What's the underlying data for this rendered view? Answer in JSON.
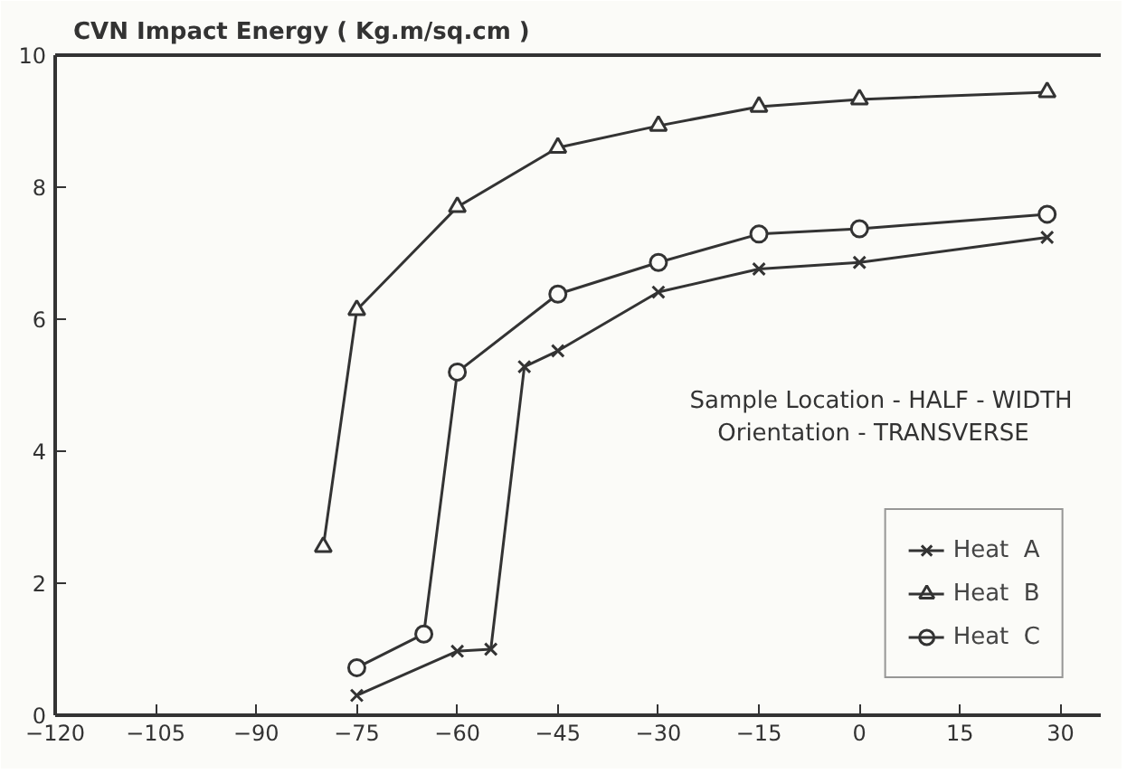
{
  "chart_data": {
    "type": "line",
    "ylabel": "CVN Impact Energy ( Kg.m/sq.cm )",
    "xlim": [
      -120,
      36
    ],
    "ylim": [
      0,
      10
    ],
    "xticks": [
      -120,
      -105,
      -90,
      -75,
      -60,
      -45,
      -30,
      -15,
      0,
      15,
      30
    ],
    "yticks": [
      0,
      2,
      4,
      6,
      8,
      10
    ],
    "grid": false,
    "legend": "bottom right",
    "line_style": "solid",
    "series": [
      {
        "name": "Heat  A",
        "color": "#333333",
        "marker": "cross",
        "x": [
          -75,
          -60,
          -55,
          -50,
          -45,
          -30,
          -15,
          0,
          28
        ],
        "values": [
          0.3,
          0.97,
          1.0,
          5.28,
          5.52,
          6.41,
          6.76,
          6.86,
          7.24
        ]
      },
      {
        "name": "Heat  B",
        "color": "#333333",
        "marker": "triangle",
        "x": [
          -80,
          -75,
          -60,
          -45,
          -30,
          -15,
          0,
          28
        ],
        "values": [
          2.55,
          6.14,
          7.7,
          8.6,
          8.93,
          9.22,
          9.33,
          9.44
        ]
      },
      {
        "name": "Heat  C",
        "color": "#333333",
        "marker": "circle",
        "x": [
          -75,
          -65,
          -60,
          -45,
          -30,
          -15,
          0,
          28
        ],
        "values": [
          0.72,
          1.23,
          5.2,
          6.38,
          6.86,
          7.29,
          7.37,
          7.59
        ]
      }
    ],
    "annotations": [
      "Sample Location  -  HALF - WIDTH",
      "Orientation      -  TRANSVERSE"
    ]
  }
}
